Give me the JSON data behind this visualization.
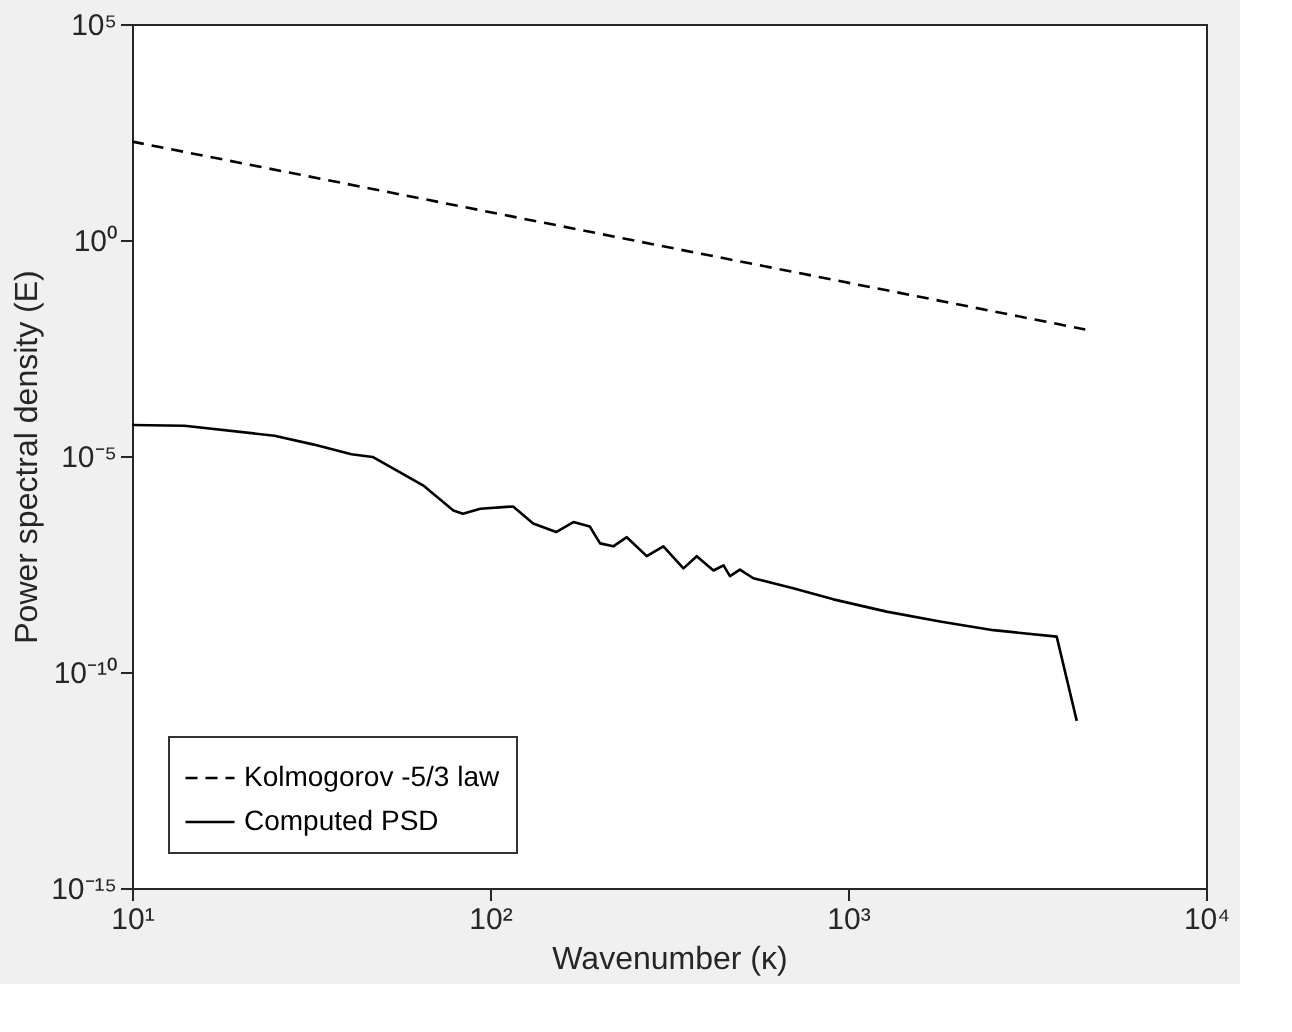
{
  "chart_data": {
    "type": "line",
    "xlabel": "Wavenumber (κ)",
    "ylabel": "Power spectral density (E)",
    "log": "xy",
    "legend": "bottom left",
    "grid": false,
    "xlim": [
      10,
      10000
    ],
    "ylim": [
      1e-15,
      100000
    ],
    "xticks": [
      {
        "value": 10,
        "label": "10¹"
      },
      {
        "value": 100,
        "label": "10²"
      },
      {
        "value": 1000,
        "label": "10³"
      },
      {
        "value": 10000,
        "label": "10⁴"
      }
    ],
    "yticks": [
      {
        "value": 1e-15,
        "label": "10⁻¹⁵"
      },
      {
        "value": 1e-10,
        "label": "10⁻¹⁰"
      },
      {
        "value": 1e-05,
        "label": "10⁻⁵"
      },
      {
        "value": 1,
        "label": "10⁰"
      },
      {
        "value": 100000,
        "label": "10⁵"
      }
    ],
    "series": [
      {
        "name": "Kolmogorov -5/3 law",
        "color": "#000000",
        "line_style": "dashed",
        "x": [
          10,
          4600
        ],
        "values": [
          190,
          0.0085
        ]
      },
      {
        "name": "Computed PSD",
        "color": "#000000",
        "line_style": "solid",
        "x": [
          10,
          14,
          25,
          32,
          41,
          47,
          65,
          79,
          84,
          94,
          116,
          132,
          153,
          171,
          190,
          203,
          221,
          241,
          274,
          305,
          347,
          378,
          421,
          449,
          468,
          499,
          544,
          703,
          910,
          1282,
          1807,
          2547,
          3828,
          4355
        ],
        "values": [
          5.2e-05,
          5e-05,
          2.95e-05,
          1.86e-05,
          1.1e-05,
          9.5e-06,
          2.1e-06,
          5.5e-07,
          4.6e-07,
          6e-07,
          6.8e-07,
          2.75e-07,
          1.74e-07,
          2.95e-07,
          2.34e-07,
          9.5e-08,
          8.1e-08,
          1.32e-07,
          4.8e-08,
          8.1e-08,
          2.5e-08,
          4.8e-08,
          2.24e-08,
          2.95e-08,
          1.66e-08,
          2.34e-08,
          1.48e-08,
          8.7e-09,
          4.8e-09,
          2.5e-09,
          1.48e-09,
          9.3e-10,
          6.6e-10,
          7.4e-12
        ]
      }
    ]
  }
}
